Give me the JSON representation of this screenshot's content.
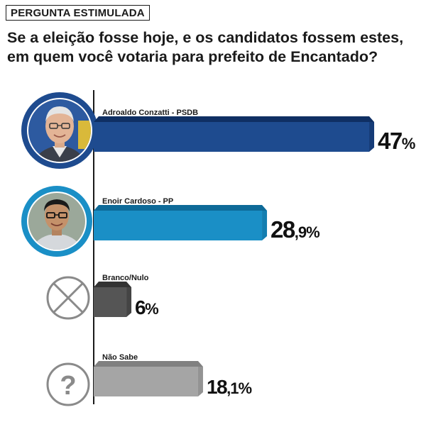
{
  "header": {
    "tag": "PERGUNTA ESTIMULADA",
    "question_line1": "Se a eleição fosse hoje, e os candidatos fossem estes,",
    "question_line2": "em quem você votaria para prefeito de Encantado?"
  },
  "colors": {
    "axis": "#1a1a1a",
    "dark_blue": "#1e4b8f",
    "light_blue": "#1a8fc6",
    "dark_gray": "#555555",
    "light_gray": "#a5a5a5"
  },
  "icons": [
    "candidate-photo",
    "candidate-photo",
    "x-circle-icon",
    "question-circle-icon"
  ],
  "chart_data": {
    "type": "bar",
    "orientation": "horizontal",
    "title": "Se a eleição fosse hoje, e os candidatos fossem estes, em quem você votaria para prefeito de Encantado?",
    "categories": [
      "Adroaldo Conzatti - PSDB",
      "Enoir Cardoso - PP",
      "Branco/Nulo",
      "Não Sabe"
    ],
    "values": [
      47,
      28.9,
      6,
      18.1
    ],
    "value_labels": [
      {
        "int": "47",
        "dec": "%"
      },
      {
        "int": "28",
        "dec": ",9%"
      },
      {
        "int": "6",
        "dec": "%"
      },
      {
        "int": "18",
        "dec": ",1%"
      }
    ],
    "bar_colors": [
      "#1e4b8f",
      "#1a8fc6",
      "#555555",
      "#a5a5a5"
    ],
    "xlim": [
      0,
      47
    ],
    "grid": false,
    "legend": "none"
  }
}
